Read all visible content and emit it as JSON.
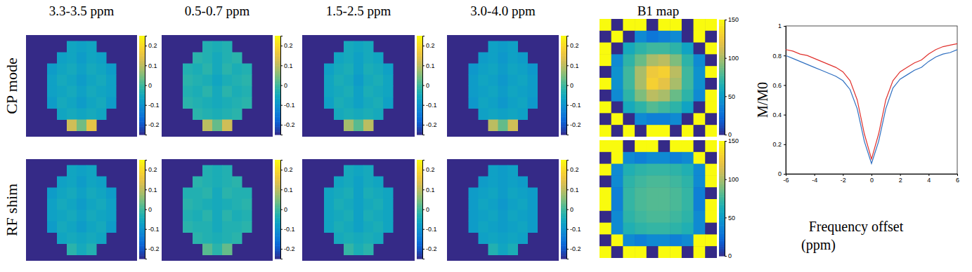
{
  "chart_data": [
    {
      "type": "heatmap",
      "title": "3.3-3.5 ppm",
      "ylabel": "CP mode",
      "zlim": [
        -0.25,
        0.25
      ],
      "zticks": [
        -0.2,
        -0.1,
        0,
        0.1,
        0.2
      ],
      "cells": [
        [
          null,
          null,
          -0.06,
          -0.07,
          -0.06,
          null,
          null
        ],
        [
          null,
          -0.07,
          -0.06,
          -0.08,
          -0.06,
          -0.07,
          null
        ],
        [
          -0.08,
          -0.06,
          -0.05,
          -0.07,
          -0.05,
          -0.06,
          -0.08
        ],
        [
          -0.07,
          -0.05,
          -0.06,
          -0.08,
          -0.06,
          -0.05,
          -0.07
        ],
        [
          -0.07,
          -0.06,
          -0.05,
          -0.07,
          -0.05,
          -0.06,
          -0.07
        ],
        [
          -0.08,
          -0.05,
          -0.06,
          -0.08,
          -0.06,
          -0.05,
          -0.08
        ],
        [
          null,
          -0.06,
          -0.05,
          -0.06,
          -0.05,
          -0.06,
          null
        ],
        [
          null,
          null,
          0.12,
          0.04,
          0.15,
          null,
          null
        ]
      ]
    },
    {
      "type": "heatmap",
      "title": "0.5-0.7 ppm",
      "zlim": [
        -0.25,
        0.25
      ],
      "zticks": [
        -0.2,
        -0.1,
        0,
        0.1,
        0.2
      ],
      "cells": [
        [
          null,
          null,
          -0.03,
          -0.04,
          -0.03,
          null,
          null
        ],
        [
          null,
          -0.02,
          -0.03,
          -0.05,
          -0.03,
          -0.02,
          null
        ],
        [
          -0.03,
          -0.04,
          -0.02,
          -0.05,
          -0.02,
          -0.04,
          -0.03
        ],
        [
          -0.02,
          -0.03,
          -0.04,
          -0.06,
          -0.04,
          -0.03,
          -0.02
        ],
        [
          -0.03,
          -0.04,
          -0.02,
          -0.05,
          -0.02,
          -0.04,
          -0.03
        ],
        [
          -0.02,
          -0.03,
          -0.04,
          -0.05,
          -0.04,
          -0.03,
          -0.02
        ],
        [
          null,
          -0.02,
          -0.03,
          -0.04,
          -0.03,
          -0.02,
          null
        ],
        [
          null,
          null,
          0.1,
          0.03,
          0.12,
          null,
          null
        ]
      ]
    },
    {
      "type": "heatmap",
      "title": "1.5-2.5 ppm",
      "zlim": [
        -0.25,
        0.25
      ],
      "zticks": [
        -0.2,
        -0.1,
        0,
        0.1,
        0.2
      ],
      "cells": [
        [
          null,
          null,
          -0.05,
          -0.06,
          -0.05,
          null,
          null
        ],
        [
          null,
          -0.06,
          -0.05,
          -0.07,
          -0.05,
          -0.06,
          null
        ],
        [
          -0.07,
          -0.05,
          -0.04,
          -0.07,
          -0.04,
          -0.05,
          -0.07
        ],
        [
          -0.06,
          -0.04,
          -0.05,
          -0.08,
          -0.05,
          -0.04,
          -0.06
        ],
        [
          -0.06,
          -0.05,
          -0.04,
          -0.07,
          -0.04,
          -0.05,
          -0.06
        ],
        [
          -0.07,
          -0.04,
          -0.05,
          -0.07,
          -0.05,
          -0.04,
          -0.07
        ],
        [
          null,
          -0.05,
          -0.04,
          -0.05,
          -0.04,
          -0.05,
          null
        ],
        [
          null,
          null,
          0.08,
          0.02,
          0.1,
          null,
          null
        ]
      ]
    },
    {
      "type": "heatmap",
      "title": "3.0-4.0 ppm",
      "zlim": [
        -0.25,
        0.25
      ],
      "zticks": [
        -0.2,
        -0.1,
        0,
        0.1,
        0.2
      ],
      "cells": [
        [
          null,
          null,
          -0.07,
          -0.08,
          -0.07,
          null,
          null
        ],
        [
          null,
          -0.08,
          -0.07,
          -0.09,
          -0.07,
          -0.08,
          null
        ],
        [
          -0.09,
          -0.07,
          -0.06,
          -0.08,
          -0.06,
          -0.07,
          -0.09
        ],
        [
          -0.08,
          -0.06,
          -0.07,
          -0.09,
          -0.07,
          -0.06,
          -0.08
        ],
        [
          -0.08,
          -0.07,
          -0.06,
          -0.08,
          -0.06,
          -0.07,
          -0.08
        ],
        [
          -0.09,
          -0.06,
          -0.07,
          -0.09,
          -0.07,
          -0.06,
          -0.09
        ],
        [
          null,
          -0.07,
          -0.06,
          -0.07,
          -0.06,
          -0.07,
          null
        ],
        [
          null,
          null,
          0.1,
          0.03,
          0.12,
          null,
          null
        ]
      ]
    },
    {
      "type": "heatmap",
      "title": "B1 map",
      "zlim": [
        0,
        150
      ],
      "zticks": [
        0,
        50,
        100,
        150
      ],
      "cells": [
        [
          150,
          0,
          150,
          150,
          0,
          150,
          150,
          0,
          150,
          150
        ],
        [
          0,
          150,
          0,
          40,
          30,
          35,
          40,
          0,
          150,
          0
        ],
        [
          150,
          0,
          60,
          70,
          75,
          75,
          70,
          55,
          0,
          150
        ],
        [
          150,
          40,
          70,
          85,
          100,
          105,
          90,
          70,
          40,
          0
        ],
        [
          0,
          45,
          75,
          100,
          125,
          130,
          105,
          75,
          45,
          150
        ],
        [
          150,
          45,
          75,
          100,
          130,
          120,
          100,
          75,
          45,
          0
        ],
        [
          0,
          40,
          70,
          90,
          105,
          100,
          85,
          70,
          40,
          150
        ],
        [
          150,
          0,
          60,
          70,
          80,
          75,
          70,
          55,
          0,
          150
        ],
        [
          0,
          150,
          0,
          40,
          35,
          35,
          40,
          0,
          150,
          0
        ],
        [
          150,
          0,
          150,
          0,
          150,
          150,
          0,
          150,
          0,
          150
        ]
      ]
    },
    {
      "type": "heatmap",
      "ylabel": "RF shim",
      "zlim": [
        -0.25,
        0.25
      ],
      "zticks": [
        -0.2,
        -0.1,
        0,
        0.1,
        0.2
      ],
      "cells": [
        [
          null,
          null,
          -0.06,
          -0.07,
          -0.06,
          null,
          null
        ],
        [
          null,
          -0.07,
          -0.06,
          -0.08,
          -0.06,
          -0.07,
          null
        ],
        [
          -0.08,
          -0.06,
          -0.05,
          -0.07,
          -0.05,
          -0.06,
          -0.08
        ],
        [
          -0.07,
          -0.05,
          -0.06,
          -0.08,
          -0.06,
          -0.05,
          -0.07
        ],
        [
          -0.07,
          -0.06,
          -0.05,
          -0.07,
          -0.05,
          -0.06,
          -0.07
        ],
        [
          -0.08,
          -0.05,
          -0.06,
          -0.08,
          -0.06,
          -0.05,
          -0.08
        ],
        [
          null,
          -0.06,
          -0.05,
          -0.06,
          -0.05,
          -0.06,
          null
        ],
        [
          null,
          null,
          -0.02,
          -0.05,
          -0.03,
          null,
          null
        ]
      ]
    },
    {
      "type": "heatmap",
      "zlim": [
        -0.25,
        0.25
      ],
      "zticks": [
        -0.2,
        -0.1,
        0,
        0.1,
        0.2
      ],
      "cells": [
        [
          null,
          null,
          -0.03,
          -0.04,
          -0.03,
          null,
          null
        ],
        [
          null,
          -0.02,
          -0.03,
          -0.04,
          -0.03,
          -0.02,
          null
        ],
        [
          -0.03,
          -0.03,
          -0.02,
          -0.05,
          -0.02,
          -0.03,
          -0.03
        ],
        [
          -0.02,
          -0.03,
          -0.04,
          -0.05,
          -0.04,
          -0.03,
          -0.02
        ],
        [
          -0.03,
          -0.04,
          -0.02,
          -0.05,
          -0.02,
          -0.04,
          -0.03
        ],
        [
          -0.02,
          -0.03,
          -0.03,
          -0.05,
          -0.03,
          -0.03,
          -0.02
        ],
        [
          null,
          -0.02,
          -0.03,
          -0.04,
          -0.03,
          -0.02,
          null
        ],
        [
          null,
          null,
          0.02,
          -0.02,
          0.03,
          null,
          null
        ]
      ]
    },
    {
      "type": "heatmap",
      "zlim": [
        -0.25,
        0.25
      ],
      "zticks": [
        -0.2,
        -0.1,
        0,
        0.1,
        0.2
      ],
      "cells": [
        [
          null,
          null,
          -0.05,
          -0.06,
          -0.05,
          null,
          null
        ],
        [
          null,
          -0.06,
          -0.05,
          -0.07,
          -0.05,
          -0.06,
          null
        ],
        [
          -0.06,
          -0.05,
          -0.04,
          -0.07,
          -0.04,
          -0.05,
          -0.06
        ],
        [
          -0.06,
          -0.04,
          -0.05,
          -0.07,
          -0.05,
          -0.04,
          -0.06
        ],
        [
          -0.06,
          -0.05,
          -0.04,
          -0.07,
          -0.04,
          -0.05,
          -0.06
        ],
        [
          -0.06,
          -0.04,
          -0.05,
          -0.07,
          -0.05,
          -0.04,
          -0.06
        ],
        [
          null,
          -0.05,
          -0.04,
          -0.05,
          -0.04,
          -0.05,
          null
        ],
        [
          null,
          null,
          -0.01,
          -0.04,
          -0.02,
          null,
          null
        ]
      ]
    },
    {
      "type": "heatmap",
      "zlim": [
        -0.25,
        0.25
      ],
      "zticks": [
        -0.2,
        -0.1,
        0,
        0.1,
        0.2
      ],
      "cells": [
        [
          null,
          null,
          -0.07,
          -0.08,
          -0.07,
          null,
          null
        ],
        [
          null,
          -0.08,
          -0.07,
          -0.08,
          -0.07,
          -0.08,
          null
        ],
        [
          -0.08,
          -0.07,
          -0.06,
          -0.08,
          -0.06,
          -0.07,
          -0.08
        ],
        [
          -0.08,
          -0.06,
          -0.07,
          -0.09,
          -0.07,
          -0.06,
          -0.08
        ],
        [
          -0.08,
          -0.07,
          -0.06,
          -0.08,
          -0.06,
          -0.07,
          -0.08
        ],
        [
          -0.08,
          -0.06,
          -0.07,
          -0.08,
          -0.07,
          -0.06,
          -0.08
        ],
        [
          null,
          -0.07,
          -0.06,
          -0.07,
          -0.06,
          -0.07,
          null
        ],
        [
          null,
          null,
          -0.03,
          -0.06,
          -0.04,
          null,
          null
        ]
      ]
    },
    {
      "type": "heatmap",
      "zlim": [
        0,
        150
      ],
      "zticks": [
        0,
        50,
        100,
        150
      ],
      "cells": [
        [
          150,
          150,
          0,
          150,
          150,
          0,
          150,
          150,
          0,
          150
        ],
        [
          0,
          150,
          40,
          35,
          40,
          40,
          35,
          40,
          150,
          0
        ],
        [
          150,
          40,
          65,
          70,
          72,
          72,
          70,
          65,
          40,
          150
        ],
        [
          0,
          40,
          70,
          75,
          78,
          78,
          75,
          70,
          40,
          150
        ],
        [
          150,
          35,
          72,
          78,
          80,
          80,
          78,
          72,
          35,
          0
        ],
        [
          150,
          35,
          72,
          78,
          80,
          80,
          78,
          72,
          35,
          150
        ],
        [
          0,
          40,
          70,
          75,
          78,
          78,
          75,
          70,
          40,
          150
        ],
        [
          150,
          40,
          65,
          70,
          72,
          72,
          70,
          65,
          40,
          0
        ],
        [
          0,
          150,
          40,
          35,
          40,
          40,
          35,
          40,
          150,
          150
        ],
        [
          150,
          0,
          150,
          150,
          0,
          150,
          150,
          0,
          150,
          0
        ]
      ]
    },
    {
      "type": "line",
      "ylabel": "M/M0",
      "xlabel": "Frequency offset (ppm)",
      "x": [
        -6,
        -5.5,
        -5,
        -4.5,
        -4,
        -3.5,
        -3,
        -2.5,
        -2,
        -1.5,
        -1,
        -0.5,
        0,
        0.5,
        1,
        1.5,
        2,
        2.5,
        3,
        3.5,
        4,
        4.5,
        5,
        5.5,
        6
      ],
      "xlim": [
        -6,
        6
      ],
      "xticks": [
        -6,
        -4,
        -2,
        0,
        2,
        4,
        6
      ],
      "ylim": [
        0,
        1
      ],
      "yticks": [
        0,
        0.2,
        0.4,
        0.6,
        0.8,
        1
      ],
      "series": [
        {
          "color": "#e0302c",
          "values": [
            0.84,
            0.83,
            0.81,
            0.8,
            0.78,
            0.76,
            0.74,
            0.72,
            0.69,
            0.63,
            0.5,
            0.27,
            0.1,
            0.27,
            0.5,
            0.63,
            0.69,
            0.72,
            0.75,
            0.77,
            0.81,
            0.84,
            0.86,
            0.87,
            0.88
          ]
        },
        {
          "color": "#2f6fc0",
          "values": [
            0.8,
            0.78,
            0.76,
            0.74,
            0.72,
            0.7,
            0.68,
            0.66,
            0.63,
            0.57,
            0.44,
            0.22,
            0.07,
            0.22,
            0.44,
            0.58,
            0.64,
            0.67,
            0.7,
            0.72,
            0.76,
            0.79,
            0.81,
            0.82,
            0.84
          ]
        }
      ]
    }
  ]
}
